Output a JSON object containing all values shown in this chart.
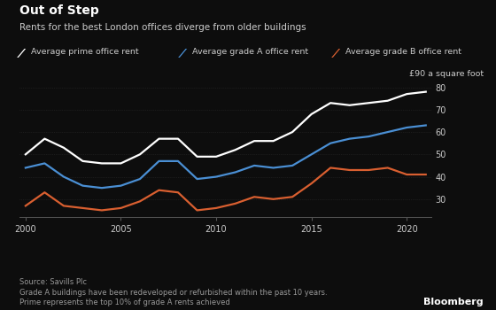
{
  "title": "Out of Step",
  "subtitle": "Rents for the best London offices diverge from older buildings",
  "unit_label": "£90 a square foot",
  "source_text": "Source: Savills Plc\nGrade A buildings have been redeveloped or refurbished within the past 10 years.\nPrime represents the top 10% of grade A rents achieved",
  "bloomberg_label": "Bloomberg",
  "legend": [
    {
      "label": "Average prime office rent",
      "color": "#ffffff"
    },
    {
      "label": "Average grade A office rent",
      "color": "#4a8fd4"
    },
    {
      "label": "Average grade B office rent",
      "color": "#d95f30"
    }
  ],
  "years": [
    2000,
    2001,
    2002,
    2003,
    2004,
    2005,
    2006,
    2007,
    2008,
    2009,
    2010,
    2011,
    2012,
    2013,
    2014,
    2015,
    2016,
    2017,
    2018,
    2019,
    2020,
    2021
  ],
  "prime": [
    50,
    57,
    53,
    47,
    46,
    46,
    50,
    57,
    57,
    49,
    49,
    52,
    56,
    56,
    60,
    68,
    73,
    72,
    73,
    74,
    77,
    78
  ],
  "grade_a": [
    44,
    46,
    40,
    36,
    35,
    36,
    39,
    47,
    47,
    39,
    40,
    42,
    45,
    44,
    45,
    50,
    55,
    57,
    58,
    60,
    62,
    63
  ],
  "grade_b": [
    27,
    33,
    27,
    26,
    25,
    26,
    29,
    34,
    33,
    25,
    26,
    28,
    31,
    30,
    31,
    37,
    44,
    43,
    43,
    44,
    41,
    41
  ],
  "ylim": [
    22,
    83
  ],
  "yticks": [
    30,
    40,
    50,
    60,
    70,
    80
  ],
  "bg_color": "#0d0d0d",
  "text_color": "#cccccc",
  "grid_color": "#2a2a2a",
  "axis_color": "#555555"
}
